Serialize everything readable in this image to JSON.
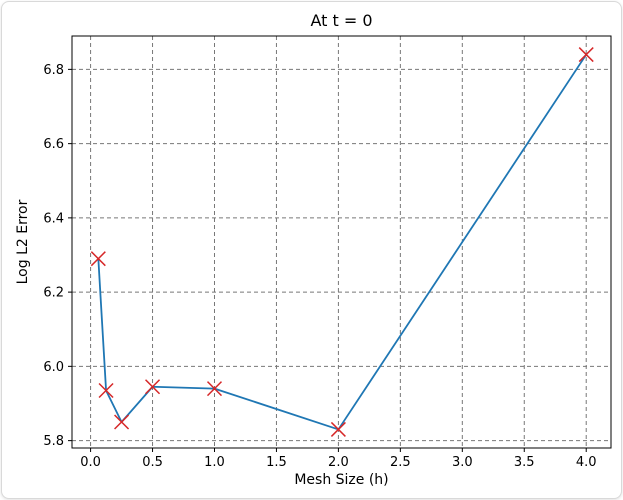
{
  "chart_data": {
    "type": "line",
    "title": "At t = 0",
    "xlabel": "Mesh Size (h)",
    "ylabel": "Log L2 Error",
    "xlim": [
      -0.15,
      4.2
    ],
    "ylim": [
      5.78,
      6.89
    ],
    "xticks": [
      0.0,
      0.5,
      1.0,
      1.5,
      2.0,
      2.5,
      3.0,
      3.5,
      4.0
    ],
    "xtick_labels": [
      "0.0",
      "0.5",
      "1.0",
      "1.5",
      "2.0",
      "2.5",
      "3.0",
      "3.5",
      "4.0"
    ],
    "yticks": [
      5.8,
      6.0,
      6.2,
      6.4,
      6.6,
      6.8
    ],
    "ytick_labels": [
      "5.8",
      "6.0",
      "6.2",
      "6.4",
      "6.6",
      "6.8"
    ],
    "grid": true,
    "series": [
      {
        "x": [
          0.0625,
          0.125,
          0.25,
          0.5,
          1.0,
          2.0,
          4.0
        ],
        "y": [
          6.29,
          5.935,
          5.85,
          5.945,
          5.94,
          5.83,
          6.84
        ],
        "line_color": "#1f77b4",
        "marker": "x",
        "marker_color": "#d62728"
      }
    ]
  }
}
